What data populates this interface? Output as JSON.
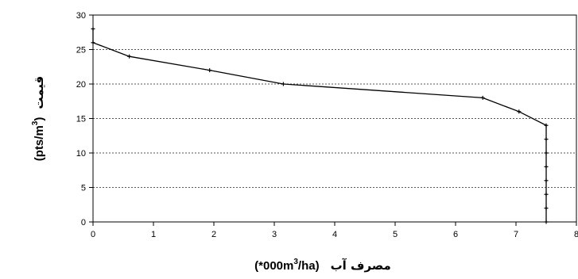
{
  "chart_data": {
    "type": "line",
    "title": "",
    "xlabel": {
      "unit": "(*000m",
      "sup": "3",
      "unit_end": "/ha)",
      "fa": "مصرف آب"
    },
    "ylabel": {
      "fa": "قیمت",
      "unit": "(pts/m",
      "sup": "3",
      "unit_end": ")"
    },
    "xlim": [
      0,
      8
    ],
    "ylim": [
      0,
      30
    ],
    "x_ticks": [
      0,
      1,
      2,
      3,
      4,
      5,
      6,
      7,
      8
    ],
    "y_ticks": [
      0,
      5,
      10,
      15,
      20,
      25,
      30
    ],
    "grid": "horizontal-dotted",
    "legend": "none",
    "series": [
      {
        "color": "#000000",
        "marker": "plus",
        "points": [
          {
            "x": 0,
            "y": 28
          },
          {
            "x": 0,
            "y": 26
          },
          {
            "x": 0.6,
            "y": 24
          },
          {
            "x": 1.93,
            "y": 22
          },
          {
            "x": 3.15,
            "y": 20
          },
          {
            "x": 6.45,
            "y": 18
          },
          {
            "x": 7.05,
            "y": 16
          },
          {
            "x": 7.5,
            "y": 14
          },
          {
            "x": 7.5,
            "y": 12
          },
          {
            "x": 7.5,
            "y": 10
          },
          {
            "x": 7.5,
            "y": 8
          },
          {
            "x": 7.5,
            "y": 6
          },
          {
            "x": 7.5,
            "y": 4
          },
          {
            "x": 7.5,
            "y": 2
          },
          {
            "x": 7.5,
            "y": 0
          }
        ]
      }
    ]
  }
}
